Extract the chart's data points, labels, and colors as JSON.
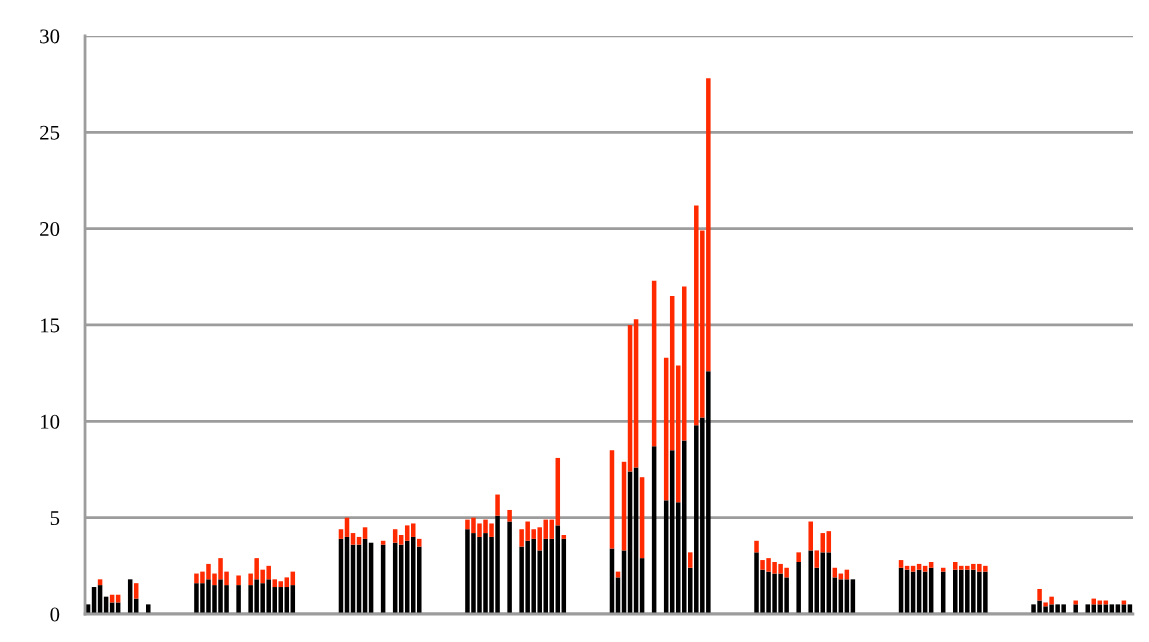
{
  "chart_data": {
    "type": "bar",
    "stacked": true,
    "categories": [
      null,
      null,
      null,
      null,
      null,
      null,
      null,
      null,
      null,
      null,
      null,
      null,
      null,
      null,
      null,
      null,
      null,
      null,
      null,
      null,
      null,
      null,
      null,
      null,
      null,
      null,
      null,
      null,
      null,
      null,
      null,
      null,
      null,
      null,
      null,
      null,
      null,
      null,
      null,
      null,
      null,
      null,
      null,
      null,
      null,
      null,
      null,
      null,
      null,
      null,
      null,
      null,
      null,
      null,
      null,
      null,
      null,
      null,
      null,
      null,
      null,
      null,
      null,
      null,
      null,
      null,
      null,
      null,
      null,
      null,
      null,
      null,
      null,
      null,
      null,
      null,
      null,
      null,
      null,
      null,
      null,
      null,
      null,
      null,
      null,
      null,
      null,
      null,
      null,
      null,
      null,
      null,
      null,
      null,
      null,
      null,
      null,
      null,
      null,
      null,
      null,
      null,
      null,
      null,
      null,
      null,
      null,
      null,
      null,
      null,
      null,
      null,
      null,
      null,
      null,
      null,
      null,
      null,
      null,
      null,
      null,
      null,
      null,
      null,
      null,
      null,
      null,
      null,
      null,
      null,
      null,
      null,
      null,
      null,
      null,
      null,
      null,
      null,
      null,
      null,
      null,
      null,
      null,
      null,
      null,
      null,
      null,
      null,
      null,
      null,
      null,
      null,
      null,
      null,
      null,
      null,
      null,
      null,
      null,
      null,
      null,
      null,
      null,
      null,
      null,
      null,
      null,
      null,
      null,
      null,
      null,
      null,
      null,
      null
    ],
    "series": [
      {
        "color": "#000000",
        "values": [
          0.5,
          1.4,
          1.5,
          0.9,
          0.6,
          0.6,
          null,
          1.8,
          0.8,
          null,
          0.5,
          null,
          null,
          null,
          null,
          null,
          null,
          null,
          1.6,
          1.6,
          1.8,
          1.5,
          1.8,
          1.5,
          null,
          1.5,
          null,
          1.5,
          1.8,
          1.6,
          1.8,
          1.4,
          1.4,
          1.4,
          1.5,
          null,
          null,
          null,
          null,
          null,
          null,
          null,
          3.9,
          4.0,
          3.6,
          3.6,
          3.9,
          3.7,
          null,
          3.6,
          null,
          3.7,
          3.6,
          3.8,
          4.0,
          3.5,
          null,
          null,
          null,
          null,
          null,
          null,
          null,
          4.4,
          4.2,
          4.0,
          4.2,
          4.0,
          5.1,
          null,
          4.8,
          null,
          3.5,
          3.8,
          3.9,
          3.3,
          3.9,
          3.9,
          4.6,
          3.9,
          null,
          null,
          null,
          null,
          null,
          null,
          null,
          3.4,
          1.9,
          3.3,
          7.4,
          7.6,
          2.9,
          null,
          8.7,
          null,
          5.9,
          8.5,
          5.8,
          9.0,
          2.4,
          9.8,
          10.2,
          12.6,
          null,
          null,
          null,
          null,
          null,
          null,
          null,
          3.2,
          2.3,
          2.2,
          2.1,
          2.1,
          1.9,
          null,
          2.7,
          null,
          3.3,
          2.4,
          3.2,
          3.2,
          1.9,
          1.8,
          1.8,
          1.8,
          null,
          null,
          null,
          null,
          null,
          null,
          null,
          2.4,
          2.3,
          2.2,
          2.3,
          2.2,
          2.4,
          null,
          2.2,
          null,
          2.3,
          2.3,
          2.3,
          2.3,
          2.2,
          2.2,
          null,
          null,
          null,
          null,
          null,
          null,
          null,
          0.5,
          0.7,
          0.4,
          0.5,
          0.5,
          0.5,
          null,
          0.5,
          null,
          0.5,
          0.5,
          0.5,
          0.5,
          0.5,
          0.5,
          0.5,
          0.5
        ]
      },
      {
        "color": "#ff2a00",
        "values": [
          null,
          null,
          0.3,
          null,
          0.4,
          0.4,
          null,
          null,
          0.8,
          null,
          null,
          null,
          null,
          null,
          null,
          null,
          null,
          null,
          0.5,
          0.6,
          0.8,
          0.6,
          1.1,
          0.7,
          null,
          0.5,
          null,
          0.6,
          1.1,
          0.7,
          0.7,
          0.4,
          0.3,
          0.5,
          0.7,
          null,
          null,
          null,
          null,
          null,
          null,
          null,
          0.5,
          1.0,
          0.6,
          0.4,
          0.6,
          null,
          null,
          0.2,
          null,
          0.7,
          0.5,
          0.8,
          0.7,
          0.4,
          null,
          null,
          null,
          null,
          null,
          null,
          null,
          0.5,
          0.8,
          0.7,
          0.7,
          0.7,
          1.1,
          null,
          0.6,
          null,
          0.9,
          1.0,
          0.5,
          1.2,
          1.0,
          1.0,
          3.5,
          0.2,
          null,
          null,
          null,
          null,
          null,
          null,
          null,
          5.1,
          0.3,
          4.6,
          7.6,
          7.7,
          4.2,
          null,
          8.6,
          null,
          7.4,
          8.0,
          7.1,
          8.0,
          0.8,
          11.4,
          9.7,
          15.2,
          null,
          null,
          null,
          null,
          null,
          null,
          null,
          0.6,
          0.5,
          0.7,
          0.6,
          0.5,
          0.5,
          null,
          0.5,
          null,
          1.5,
          0.9,
          1.0,
          1.1,
          0.5,
          0.3,
          0.5,
          null,
          null,
          null,
          null,
          null,
          null,
          null,
          null,
          0.4,
          0.2,
          0.3,
          0.3,
          0.3,
          0.3,
          null,
          0.2,
          null,
          0.4,
          0.2,
          0.2,
          0.3,
          0.4,
          0.3,
          null,
          null,
          null,
          null,
          null,
          null,
          null,
          null,
          0.6,
          0.2,
          0.4,
          null,
          null,
          null,
          0.2,
          null,
          null,
          0.3,
          0.2,
          0.2,
          null,
          null,
          0.2,
          null
        ]
      }
    ],
    "ylim": [
      0,
      30
    ],
    "yticks": [
      0,
      5,
      10,
      15,
      20,
      25,
      30
    ],
    "grid": "y",
    "tick_labels": "y"
  }
}
